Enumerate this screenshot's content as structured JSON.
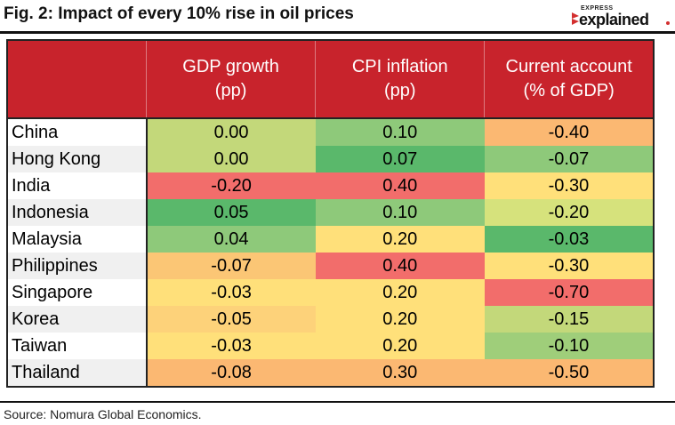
{
  "header": {
    "title": "Fig. 2: Impact of every 10% rise in oil prices",
    "brand_small": "EXPRESS",
    "brand_big": "explained"
  },
  "footer": {
    "source": "Source: Nomura Global Economics."
  },
  "colors": {
    "header_bg": "#c8232c",
    "scale": [
      "#5ab86b",
      "#8ec97a",
      "#c3d87a",
      "#ffe07a",
      "#fbb872",
      "#f26d6b"
    ]
  },
  "chart_data": {
    "type": "heatmap",
    "title": "Fig. 2: Impact of every 10% rise in oil prices",
    "columns": [
      {
        "label": "GDP growth",
        "unit": "(pp)"
      },
      {
        "label": "CPI inflation",
        "unit": "(pp)"
      },
      {
        "label": "Current account",
        "unit": "(% of GDP)"
      }
    ],
    "rows": [
      "China",
      "Hong Kong",
      "India",
      "Indonesia",
      "Malaysia",
      "Philippines",
      "Singapore",
      "Korea",
      "Taiwan",
      "Thailand"
    ],
    "values": [
      [
        "0.00",
        "0.10",
        "-0.40"
      ],
      [
        "0.00",
        "0.07",
        "-0.07"
      ],
      [
        "-0.20",
        "0.40",
        "-0.30"
      ],
      [
        "0.05",
        "0.10",
        "-0.20"
      ],
      [
        "0.04",
        "0.20",
        "-0.03"
      ],
      [
        "-0.07",
        "0.40",
        "-0.30"
      ],
      [
        "-0.03",
        "0.20",
        "-0.70"
      ],
      [
        "-0.05",
        "0.20",
        "-0.15"
      ],
      [
        "-0.03",
        "0.20",
        "-0.10"
      ],
      [
        "-0.08",
        "0.30",
        "-0.50"
      ]
    ],
    "cell_colors": [
      [
        "#c3d87a",
        "#8ec97a",
        "#fbb872"
      ],
      [
        "#c3d87a",
        "#5ab86b",
        "#8ec97a"
      ],
      [
        "#f26d6b",
        "#f26d6b",
        "#ffe07a"
      ],
      [
        "#5ab86b",
        "#8ec97a",
        "#d6e27c"
      ],
      [
        "#8ec97a",
        "#ffe07a",
        "#5ab86b"
      ],
      [
        "#fbc675",
        "#f26d6b",
        "#ffe07a"
      ],
      [
        "#ffe07a",
        "#ffe07a",
        "#f26d6b"
      ],
      [
        "#fdd27a",
        "#ffe07a",
        "#c3d87a"
      ],
      [
        "#ffe07a",
        "#ffe07a",
        "#9fce7a"
      ],
      [
        "#fbb872",
        "#fbb872",
        "#fbb872"
      ]
    ]
  }
}
